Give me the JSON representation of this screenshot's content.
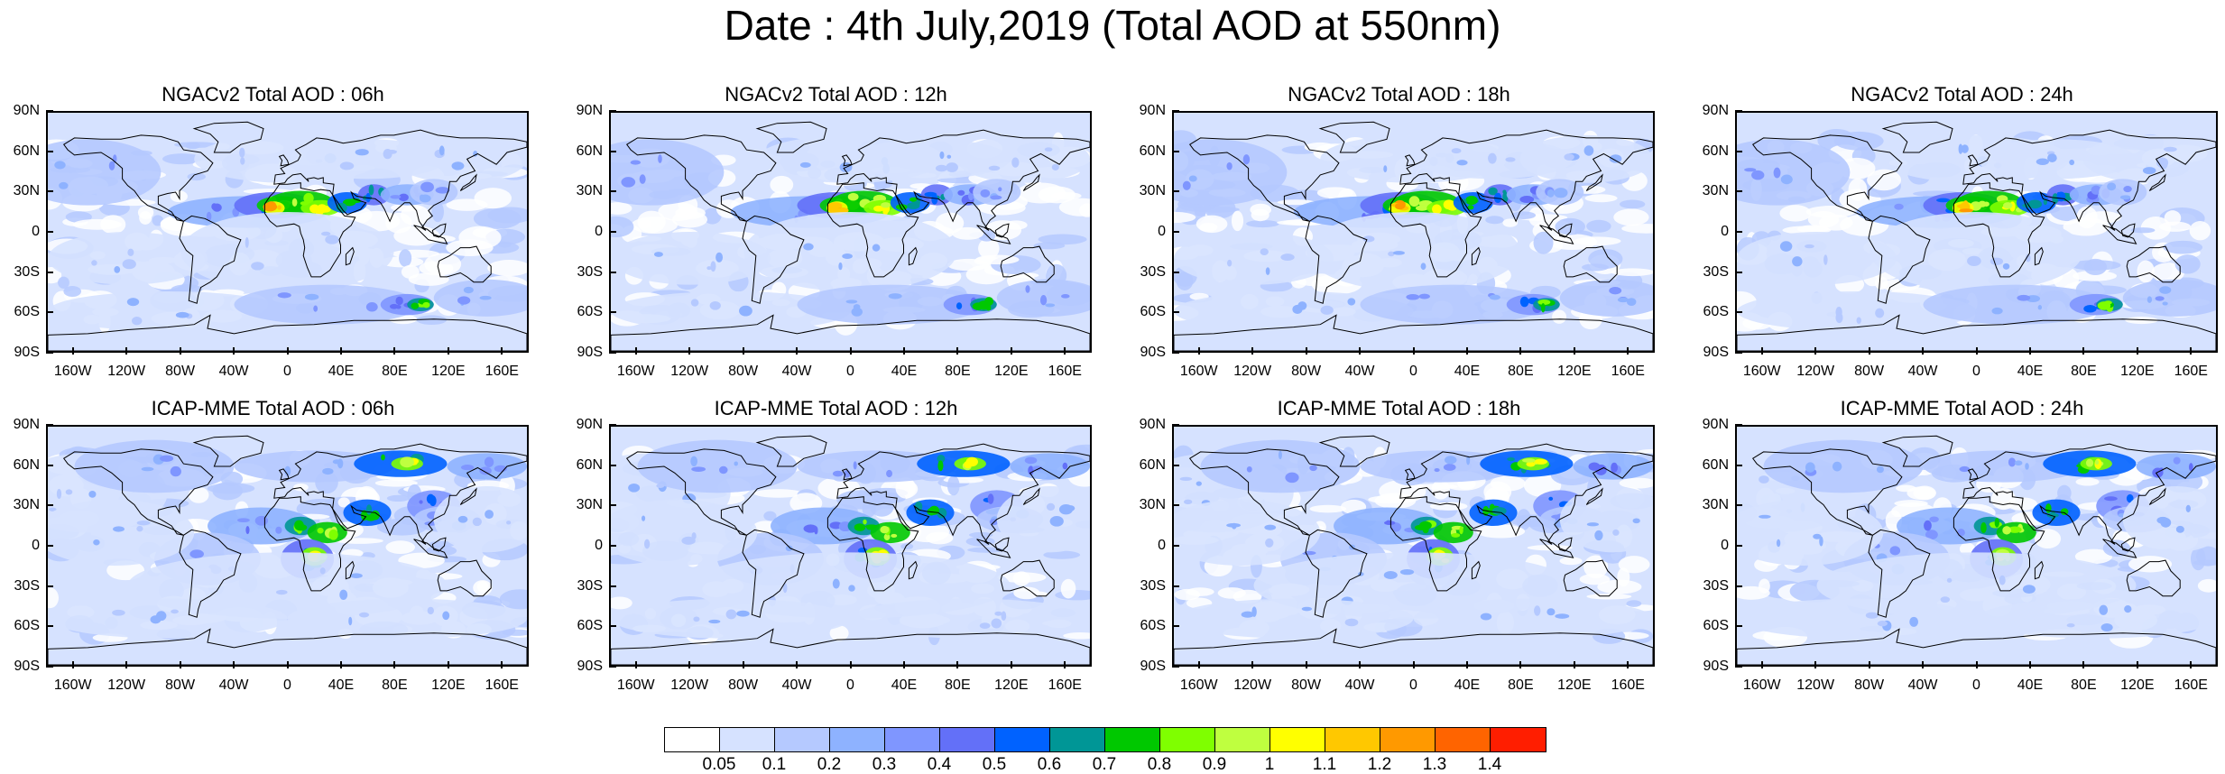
{
  "title": "Date : 4th July,2019 (Total AOD at 550nm)",
  "panels": [
    {
      "title": "NGACv2 Total AOD : 06h",
      "model": "NGACv2",
      "hour": "06h"
    },
    {
      "title": "NGACv2 Total AOD : 12h",
      "model": "NGACv2",
      "hour": "12h"
    },
    {
      "title": "NGACv2 Total AOD : 18h",
      "model": "NGACv2",
      "hour": "18h"
    },
    {
      "title": "NGACv2 Total AOD : 24h",
      "model": "NGACv2",
      "hour": "24h"
    },
    {
      "title": "ICAP-MME Total AOD : 06h",
      "model": "ICAP-MME",
      "hour": "06h"
    },
    {
      "title": "ICAP-MME Total AOD : 12h",
      "model": "ICAP-MME",
      "hour": "12h"
    },
    {
      "title": "ICAP-MME Total AOD : 18h",
      "model": "ICAP-MME",
      "hour": "18h"
    },
    {
      "title": "ICAP-MME Total AOD : 24h",
      "model": "ICAP-MME",
      "hour": "24h"
    }
  ],
  "lat_labels": [
    "90N",
    "60N",
    "30N",
    "0",
    "30S",
    "60S",
    "90S"
  ],
  "lon_labels": [
    "160W",
    "120W",
    "80W",
    "40W",
    "0",
    "40E",
    "80E",
    "120E",
    "160E"
  ],
  "colorbar": {
    "levels": [
      "0.05",
      "0.1",
      "0.2",
      "0.3",
      "0.4",
      "0.5",
      "0.6",
      "0.7",
      "0.8",
      "0.9",
      "1",
      "1.1",
      "1.2",
      "1.3",
      "1.4"
    ],
    "colors": [
      "#ffffff",
      "#d6e2ff",
      "#b5c9ff",
      "#8eb2ff",
      "#7f96ff",
      "#6370f8",
      "#0062ff",
      "#009696",
      "#00c800",
      "#7fff00",
      "#bfff3f",
      "#ffff00",
      "#ffc800",
      "#ff9900",
      "#ff6400",
      "#ff1e00"
    ]
  }
}
